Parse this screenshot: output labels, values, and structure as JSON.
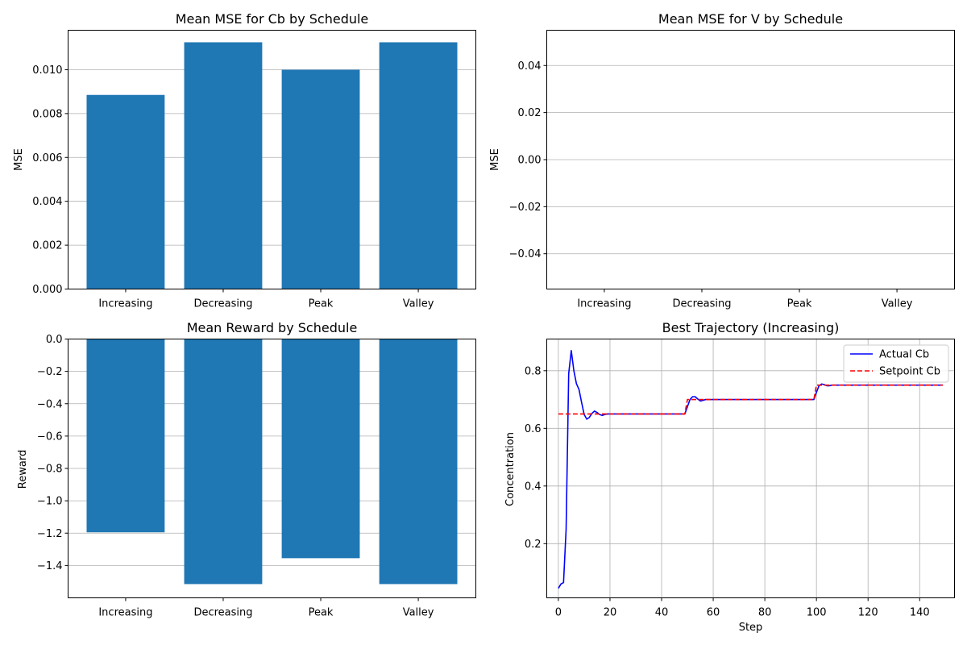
{
  "chart_data": [
    {
      "type": "bar",
      "title": "Mean MSE for Cb by Schedule",
      "xlabel": "",
      "ylabel": "MSE",
      "categories": [
        "Increasing",
        "Decreasing",
        "Peak",
        "Valley"
      ],
      "values": [
        0.00885,
        0.01125,
        0.01,
        0.01125
      ],
      "ylim": [
        0,
        0.0118
      ],
      "yticks": [
        0.0,
        0.002,
        0.004,
        0.006,
        0.008,
        0.01
      ],
      "ytick_labels": [
        "0.000",
        "0.002",
        "0.004",
        "0.006",
        "0.008",
        "0.010"
      ],
      "bar_color": "#1f77b4",
      "grid": "y"
    },
    {
      "type": "bar",
      "title": "Mean MSE for V by Schedule",
      "xlabel": "",
      "ylabel": "MSE",
      "categories": [
        "Increasing",
        "Decreasing",
        "Peak",
        "Valley"
      ],
      "values": [
        0,
        0,
        0,
        0
      ],
      "ylim": [
        -0.055,
        0.055
      ],
      "yticks": [
        -0.04,
        -0.02,
        0.0,
        0.02,
        0.04
      ],
      "ytick_labels": [
        "−0.04",
        "−0.02",
        "0.00",
        "0.02",
        "0.04"
      ],
      "bar_color": "#1f77b4",
      "grid": "y"
    },
    {
      "type": "bar",
      "title": "Mean Reward by Schedule",
      "xlabel": "",
      "ylabel": "Reward",
      "categories": [
        "Increasing",
        "Decreasing",
        "Peak",
        "Valley"
      ],
      "values": [
        -1.195,
        -1.515,
        -1.355,
        -1.515
      ],
      "ylim": [
        -1.6,
        0
      ],
      "yticks": [
        -1.4,
        -1.2,
        -1.0,
        -0.8,
        -0.6,
        -0.4,
        -0.2,
        0.0
      ],
      "ytick_labels": [
        "−1.4",
        "−1.2",
        "−1.0",
        "−0.8",
        "−0.6",
        "−0.4",
        "−0.2",
        "0.0"
      ],
      "bar_color": "#1f77b4",
      "grid": "y"
    },
    {
      "type": "line",
      "title": "Best Trajectory (Increasing)",
      "xlabel": "Step",
      "ylabel": "Concentration",
      "xlim": [
        -4.5,
        153.5
      ],
      "ylim": [
        0.012,
        0.91
      ],
      "xticks": [
        0,
        20,
        40,
        60,
        80,
        100,
        120,
        140
      ],
      "xtick_labels": [
        "0",
        "20",
        "40",
        "60",
        "80",
        "100",
        "120",
        "140"
      ],
      "yticks": [
        0.2,
        0.4,
        0.6,
        0.8
      ],
      "ytick_labels": [
        "0.2",
        "0.4",
        "0.6",
        "0.8"
      ],
      "grid": "both",
      "legend_position": "top-right",
      "series": [
        {
          "name": "Actual Cb",
          "color": "#0000ff",
          "style": "solid",
          "x": [
            0,
            1,
            2,
            3,
            4,
            5,
            6,
            7,
            8,
            9,
            10,
            11,
            12,
            13,
            14,
            15,
            16,
            17,
            18,
            19,
            20,
            25,
            30,
            35,
            40,
            45,
            48,
            49,
            50,
            51,
            52,
            53,
            54,
            55,
            56,
            57,
            58,
            60,
            70,
            80,
            90,
            98,
            99,
            100,
            101,
            102,
            103,
            104,
            105,
            106,
            110,
            120,
            130,
            140,
            149
          ],
          "y": [
            0.045,
            0.06,
            0.065,
            0.25,
            0.79,
            0.87,
            0.8,
            0.755,
            0.735,
            0.69,
            0.648,
            0.632,
            0.638,
            0.652,
            0.66,
            0.655,
            0.648,
            0.645,
            0.648,
            0.65,
            0.65,
            0.65,
            0.65,
            0.65,
            0.65,
            0.65,
            0.65,
            0.65,
            0.675,
            0.7,
            0.71,
            0.71,
            0.702,
            0.695,
            0.697,
            0.7,
            0.7,
            0.7,
            0.7,
            0.7,
            0.7,
            0.7,
            0.7,
            0.725,
            0.748,
            0.754,
            0.752,
            0.748,
            0.748,
            0.75,
            0.75,
            0.75,
            0.75,
            0.75,
            0.75
          ]
        },
        {
          "name": "Setpoint Cb",
          "color": "#ff0000",
          "style": "dashed",
          "x": [
            0,
            49,
            50,
            99,
            100,
            149
          ],
          "y": [
            0.65,
            0.65,
            0.7,
            0.7,
            0.75,
            0.75
          ]
        }
      ]
    }
  ]
}
